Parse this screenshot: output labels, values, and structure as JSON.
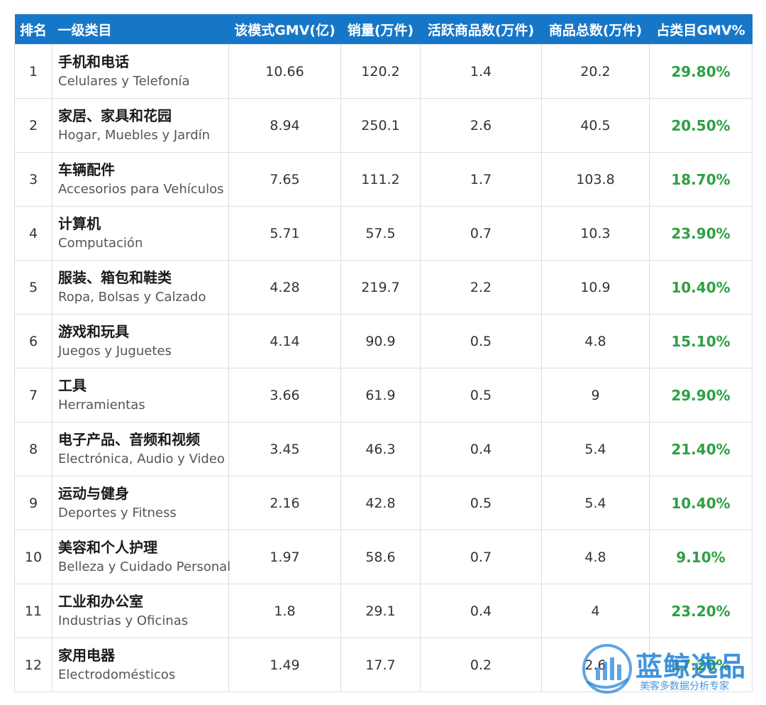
{
  "table": {
    "headers": [
      "排名",
      "一级类目",
      "该模式GMV(亿)",
      "销量(万件)",
      "活跃商品数(万件)",
      "商品总数(万件)",
      "占类目GMV%"
    ],
    "rows": [
      {
        "rank": "1",
        "cn": "手机和电话",
        "es": "Celulares y Telefonía",
        "gmv": "10.66",
        "sales": "120.2",
        "active": "1.4",
        "total": "20.2",
        "pct": "29.80%"
      },
      {
        "rank": "2",
        "cn": "家居、家具和花园",
        "es": "Hogar, Muebles y Jardín",
        "gmv": "8.94",
        "sales": "250.1",
        "active": "2.6",
        "total": "40.5",
        "pct": "20.50%"
      },
      {
        "rank": "3",
        "cn": "车辆配件",
        "es": "Accesorios para Vehículos",
        "gmv": "7.65",
        "sales": "111.2",
        "active": "1.7",
        "total": "103.8",
        "pct": "18.70%"
      },
      {
        "rank": "4",
        "cn": "计算机",
        "es": "Computación",
        "gmv": "5.71",
        "sales": "57.5",
        "active": "0.7",
        "total": "10.3",
        "pct": "23.90%"
      },
      {
        "rank": "5",
        "cn": "服装、箱包和鞋类",
        "es": "Ropa, Bolsas y Calzado",
        "gmv": "4.28",
        "sales": "219.7",
        "active": "2.2",
        "total": "10.9",
        "pct": "10.40%"
      },
      {
        "rank": "6",
        "cn": "游戏和玩具",
        "es": "Juegos y Juguetes",
        "gmv": "4.14",
        "sales": "90.9",
        "active": "0.5",
        "total": "4.8",
        "pct": "15.10%"
      },
      {
        "rank": "7",
        "cn": "工具",
        "es": "Herramientas",
        "gmv": "3.66",
        "sales": "61.9",
        "active": "0.5",
        "total": "9",
        "pct": "29.90%"
      },
      {
        "rank": "8",
        "cn": "电子产品、音频和视频",
        "es": "Electrónica, Audio y Video",
        "gmv": "3.45",
        "sales": "46.3",
        "active": "0.4",
        "total": "5.4",
        "pct": "21.40%"
      },
      {
        "rank": "9",
        "cn": "运动与健身",
        "es": "Deportes y Fitness",
        "gmv": "2.16",
        "sales": "42.8",
        "active": "0.5",
        "total": "5.4",
        "pct": "10.40%"
      },
      {
        "rank": "10",
        "cn": "美容和个人护理",
        "es": "Belleza y Cuidado Personal",
        "gmv": "1.97",
        "sales": "58.6",
        "active": "0.7",
        "total": "4.8",
        "pct": "9.10%"
      },
      {
        "rank": "11",
        "cn": "工业和办公室",
        "es": "Industrias y Oficinas",
        "gmv": "1.8",
        "sales": "29.1",
        "active": "0.4",
        "total": "4",
        "pct": "23.20%"
      },
      {
        "rank": "12",
        "cn": "家用电器",
        "es": "Electrodomésticos",
        "gmv": "1.49",
        "sales": "17.7",
        "active": "0.2",
        "total": "2.6",
        "pct": "17.20%"
      }
    ]
  },
  "watermark": {
    "title": "蓝鲸选品",
    "subtitle": "美客多数据分析专家",
    "logo_icon": "whale-chart-logo-icon",
    "color": "#1f7fd6"
  },
  "colors": {
    "header_bg": "#1677c9",
    "percent_text": "#2ea043"
  }
}
